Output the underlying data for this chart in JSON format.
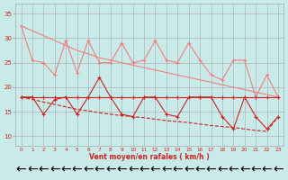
{
  "xlabel": "Vent moyen/en rafales ( km/h )",
  "x": [
    0,
    1,
    2,
    3,
    4,
    5,
    6,
    7,
    8,
    9,
    10,
    11,
    12,
    13,
    14,
    15,
    16,
    17,
    18,
    19,
    20,
    21,
    22,
    23
  ],
  "line_light_jagged": [
    32.5,
    25.5,
    25.0,
    22.5,
    29.5,
    23.0,
    29.5,
    25.0,
    25.0,
    29.0,
    25.0,
    25.5,
    29.5,
    25.5,
    25.0,
    29.0,
    25.5,
    22.5,
    21.5,
    25.5,
    25.5,
    18.0,
    22.5,
    18.0
  ],
  "line_light_trend": [
    32.5,
    31.5,
    30.5,
    29.5,
    28.5,
    27.5,
    26.8,
    26.0,
    25.5,
    25.0,
    24.5,
    24.0,
    23.5,
    23.0,
    22.5,
    22.0,
    21.5,
    21.0,
    20.5,
    20.0,
    19.5,
    19.0,
    18.5,
    18.0
  ],
  "line_dark_flat": [
    18.0,
    18.0,
    18.0,
    18.0,
    18.0,
    18.0,
    18.0,
    18.0,
    18.0,
    18.0,
    18.0,
    18.0,
    18.0,
    18.0,
    18.0,
    18.0,
    18.0,
    18.0,
    18.0,
    18.0,
    18.0,
    18.0,
    18.0,
    18.0
  ],
  "line_dark_jagged": [
    18.0,
    18.0,
    14.5,
    17.5,
    18.0,
    14.5,
    18.0,
    22.0,
    18.0,
    14.5,
    14.0,
    18.0,
    18.0,
    14.5,
    14.0,
    18.0,
    18.0,
    18.0,
    14.0,
    11.5,
    18.0,
    14.0,
    11.5,
    14.0
  ],
  "line_dark_trend": [
    18.0,
    17.5,
    17.0,
    16.5,
    16.0,
    15.5,
    15.2,
    14.8,
    14.5,
    14.2,
    14.0,
    13.8,
    13.5,
    13.2,
    13.0,
    12.8,
    12.5,
    12.2,
    12.0,
    11.8,
    11.5,
    11.2,
    11.0,
    14.0
  ],
  "color_light": "#F08080",
  "color_dark": "#CC2222",
  "bg_color": "#C8EAE8",
  "grid_color": "#AAAAAA",
  "ylim": [
    8,
    37
  ],
  "yticks": [
    10,
    15,
    20,
    25,
    30,
    35
  ],
  "xticks": [
    0,
    1,
    2,
    3,
    4,
    5,
    6,
    7,
    8,
    9,
    10,
    11,
    12,
    13,
    14,
    15,
    16,
    17,
    18,
    19,
    20,
    21,
    22,
    23
  ]
}
